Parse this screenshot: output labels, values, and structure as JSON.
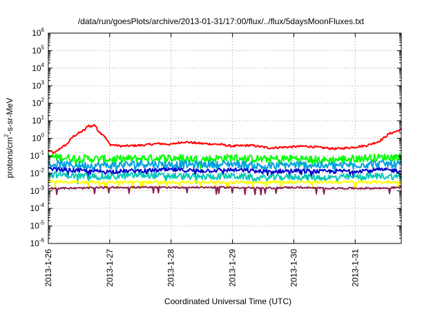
{
  "chart_data": {
    "type": "line",
    "title": "/data/run/goesPlots/archive/2013-01-31/17:00/flux/../flux/5daysMoonFluxes.txt",
    "xlabel": "Coordinated Universal Time (UTC)",
    "ylabel": {
      "base": "protons/cm",
      "sup": "2",
      "rest": "-s-sr-MeV"
    },
    "x_ticks": [
      "2013-1-26",
      "2013-1-27",
      "2013-1-28",
      "2013-1-29",
      "2013-1-30",
      "2013-1-31"
    ],
    "xlim_days": [
      0,
      5.75
    ],
    "y_scale": "log",
    "y_ticks": [
      {
        "base": "10",
        "exp": "-6"
      },
      {
        "base": "10",
        "exp": "-5"
      },
      {
        "base": "10",
        "exp": "-4"
      },
      {
        "base": "10",
        "exp": "-3"
      },
      {
        "base": "10",
        "exp": "-2"
      },
      {
        "base": "10",
        "exp": "-1"
      },
      {
        "base": "10",
        "exp": "0"
      },
      {
        "base": "10",
        "exp": "1"
      },
      {
        "base": "10",
        "exp": "2"
      },
      {
        "base": "10",
        "exp": "3"
      },
      {
        "base": "10",
        "exp": "4"
      },
      {
        "base": "10",
        "exp": "5"
      },
      {
        "base": "10",
        "exp": "6"
      }
    ],
    "ylim_log10": [
      -6,
      6
    ],
    "grid": true,
    "series": [
      {
        "color": "#ff0000",
        "points": [
          [
            0,
            -0.7
          ],
          [
            0.1,
            -0.85
          ],
          [
            0.2,
            -0.55
          ],
          [
            0.3,
            -0.35
          ],
          [
            0.4,
            0.1
          ],
          [
            0.5,
            0.3
          ],
          [
            0.6,
            0.5
          ],
          [
            0.65,
            0.75
          ],
          [
            0.7,
            0.65
          ],
          [
            0.75,
            0.8
          ],
          [
            0.8,
            0.5
          ],
          [
            0.85,
            0.3
          ],
          [
            0.9,
            0.2
          ],
          [
            1.0,
            -0.35
          ],
          [
            1.2,
            -0.45
          ],
          [
            1.5,
            -0.4
          ],
          [
            1.8,
            -0.3
          ],
          [
            2.0,
            -0.35
          ],
          [
            2.2,
            -0.2
          ],
          [
            2.5,
            -0.3
          ],
          [
            2.8,
            -0.35
          ],
          [
            3.0,
            -0.45
          ],
          [
            3.3,
            -0.4
          ],
          [
            3.6,
            -0.55
          ],
          [
            3.9,
            -0.5
          ],
          [
            4.2,
            -0.45
          ],
          [
            4.5,
            -0.55
          ],
          [
            4.7,
            -0.6
          ],
          [
            4.85,
            -0.55
          ],
          [
            5.0,
            -0.5
          ],
          [
            5.2,
            -0.4
          ],
          [
            5.4,
            -0.15
          ],
          [
            5.55,
            0.25
          ],
          [
            5.75,
            0.5
          ]
        ]
      },
      {
        "color": "#00ff00",
        "points": [
          [
            0,
            -1.05
          ],
          [
            0.5,
            -1.15
          ],
          [
            1.0,
            -1.2
          ],
          [
            1.5,
            -1.15
          ],
          [
            2.0,
            -1.1
          ],
          [
            2.5,
            -1.2
          ],
          [
            3.0,
            -1.1
          ],
          [
            3.5,
            -1.2
          ],
          [
            4.0,
            -1.15
          ],
          [
            4.5,
            -1.25
          ],
          [
            5.0,
            -1.15
          ],
          [
            5.4,
            -1.1
          ],
          [
            5.75,
            -1.05
          ]
        ]
      },
      {
        "color": "#00a0e0",
        "points": [
          [
            0,
            -1.45
          ],
          [
            0.5,
            -1.55
          ],
          [
            1.0,
            -1.55
          ],
          [
            1.5,
            -1.45
          ],
          [
            2.0,
            -1.5
          ],
          [
            2.5,
            -1.5
          ],
          [
            3.0,
            -1.45
          ],
          [
            3.5,
            -1.6
          ],
          [
            4.0,
            -1.5
          ],
          [
            4.5,
            -1.55
          ],
          [
            5.0,
            -1.5
          ],
          [
            5.4,
            -1.45
          ],
          [
            5.75,
            -1.5
          ]
        ]
      },
      {
        "color": "#0000cc",
        "points": [
          [
            0,
            -1.75
          ],
          [
            0.5,
            -1.85
          ],
          [
            1.0,
            -1.9
          ],
          [
            1.5,
            -1.85
          ],
          [
            2.0,
            -1.8
          ],
          [
            2.5,
            -1.85
          ],
          [
            3.0,
            -1.8
          ],
          [
            3.5,
            -1.9
          ],
          [
            4.0,
            -1.85
          ],
          [
            4.5,
            -1.9
          ],
          [
            5.0,
            -1.85
          ],
          [
            5.4,
            -1.8
          ],
          [
            5.75,
            -1.85
          ]
        ]
      },
      {
        "color": "#00c8b4",
        "points": [
          [
            0,
            -2.05
          ],
          [
            0.5,
            -2.15
          ],
          [
            1.0,
            -2.2
          ],
          [
            1.5,
            -2.1
          ],
          [
            2.0,
            -2.15
          ],
          [
            2.5,
            -2.2
          ],
          [
            3.0,
            -2.15
          ],
          [
            3.5,
            -2.25
          ],
          [
            4.0,
            -2.2
          ],
          [
            4.5,
            -2.25
          ],
          [
            5.0,
            -2.2
          ],
          [
            5.4,
            -2.15
          ],
          [
            5.75,
            -2.2
          ]
        ]
      },
      {
        "color": "#ffff00",
        "points": [
          [
            0,
            -2.45
          ],
          [
            0.5,
            -2.5
          ],
          [
            1.0,
            -2.5
          ],
          [
            1.5,
            -2.5
          ],
          [
            2.0,
            -2.5
          ],
          [
            2.5,
            -2.5
          ],
          [
            3.0,
            -2.5
          ],
          [
            3.5,
            -2.5
          ],
          [
            4.0,
            -2.5
          ],
          [
            4.5,
            -2.5
          ],
          [
            5.0,
            -2.5
          ],
          [
            5.4,
            -2.5
          ],
          [
            5.75,
            -2.5
          ]
        ]
      },
      {
        "color": "#8b2252",
        "points": [
          [
            0,
            -2.85
          ],
          [
            0.5,
            -2.85
          ],
          [
            1.0,
            -2.8
          ],
          [
            1.5,
            -2.8
          ],
          [
            2.0,
            -2.8
          ],
          [
            2.5,
            -2.8
          ],
          [
            3.0,
            -2.8
          ],
          [
            3.5,
            -2.85
          ],
          [
            4.0,
            -2.8
          ],
          [
            4.5,
            -2.85
          ],
          [
            5.0,
            -2.85
          ],
          [
            5.4,
            -2.85
          ],
          [
            5.75,
            -2.8
          ]
        ]
      }
    ]
  }
}
